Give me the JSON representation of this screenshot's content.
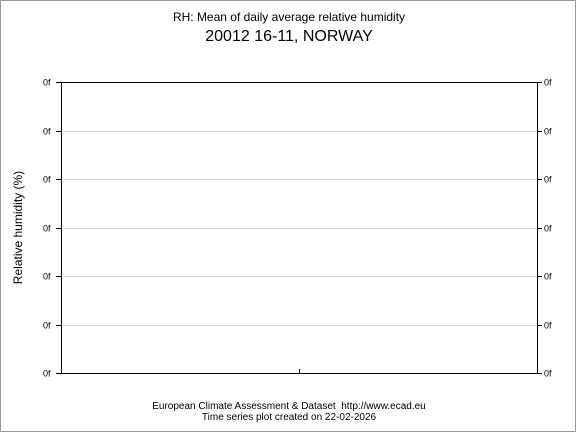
{
  "title": "RH: Mean of daily average relative humidity",
  "subtitle": "20012 16-11, NORWAY",
  "footer": {
    "line1": "European Climate Assessment & Dataset  http://www.ecad.eu",
    "line2": "Time series plot created on 22-02-2026"
  },
  "colors": {
    "frame": "#000000",
    "grid": "#d9d9d9",
    "text": "#000000"
  },
  "chart_data": {
    "type": "line",
    "title": "RH: Mean of daily average relative humidity",
    "subtitle": "20012 16-11, NORWAY",
    "xlabel": "",
    "ylabel": "Relative humidity (%)",
    "y_tick_labels": [
      "0f",
      "0f",
      "0f",
      "0f",
      "0f",
      "0f",
      "0f"
    ],
    "y_tick_labels_right": [
      "0f",
      "0f",
      "0f",
      "0f",
      "0f",
      "0f",
      "0f"
    ],
    "x_tick_count": 1,
    "series": [],
    "grid": true,
    "legend": "none"
  }
}
